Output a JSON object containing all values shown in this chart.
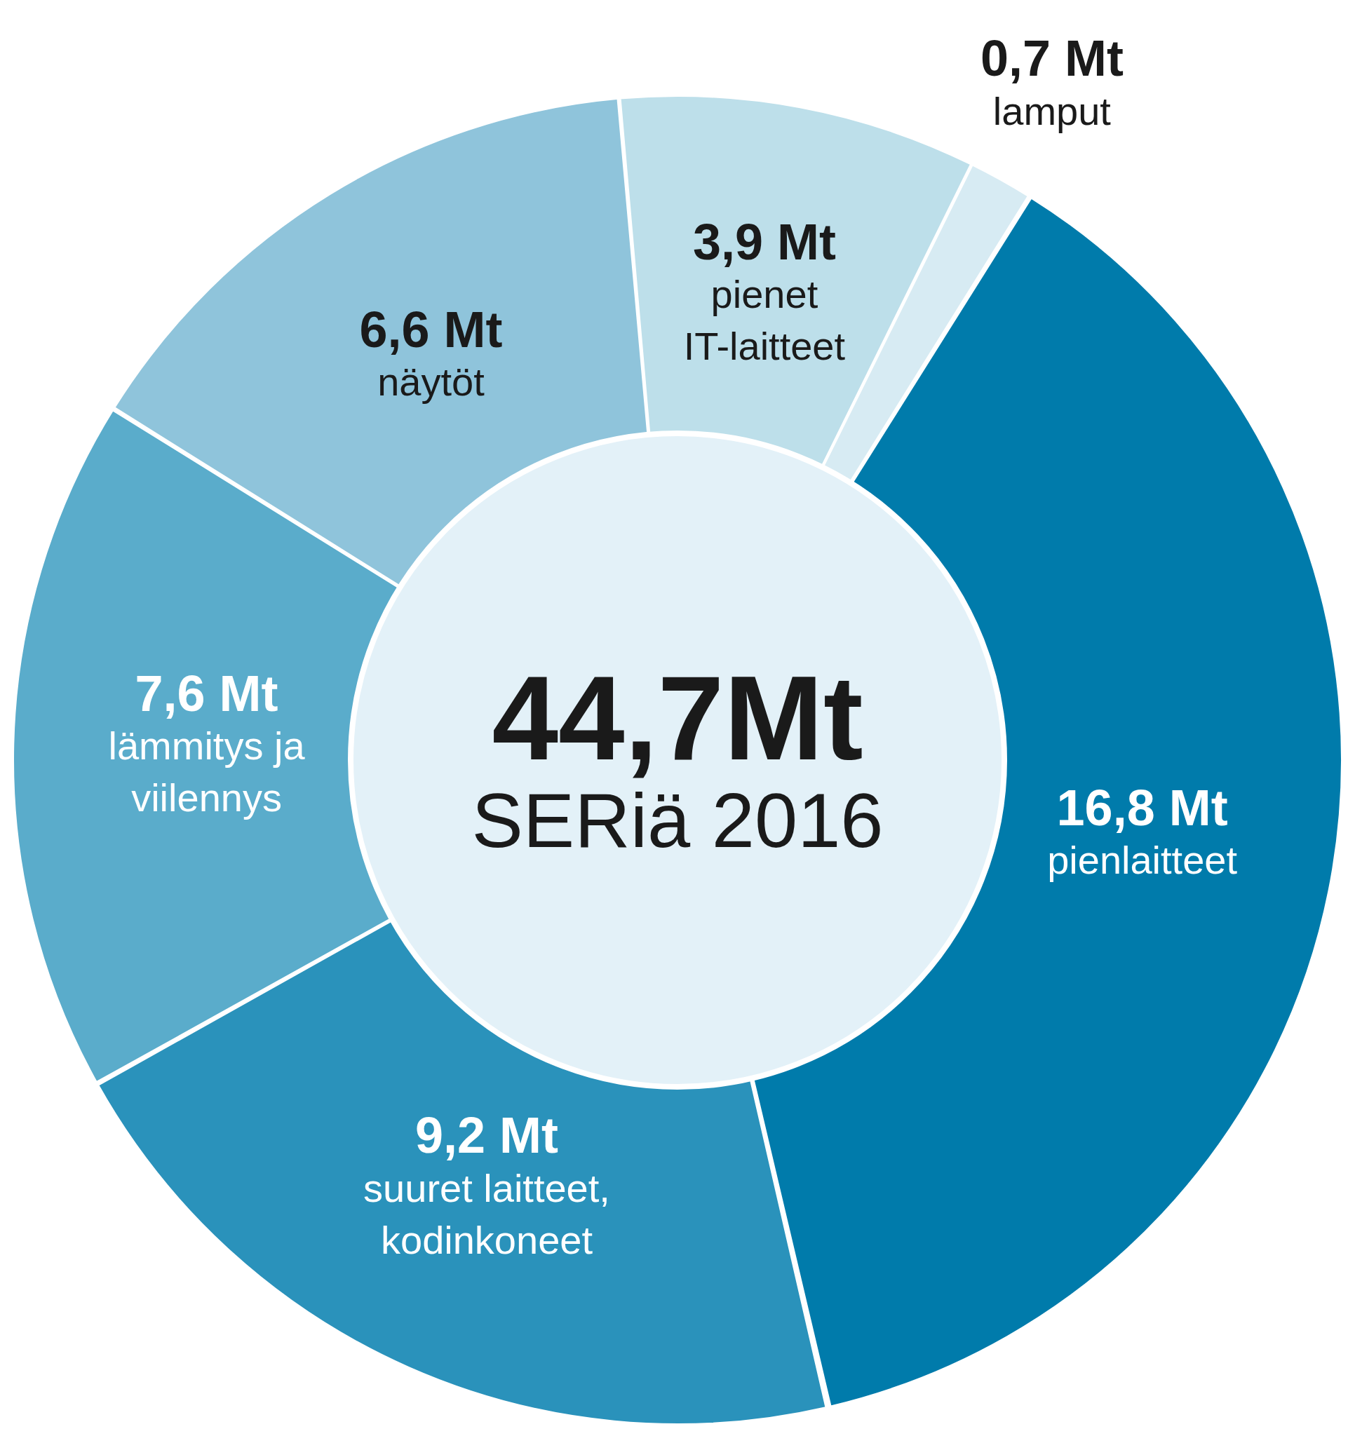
{
  "chart_data": {
    "type": "donut",
    "title": "44,7Mt",
    "subtitle": "SERiä 2016",
    "categories": [
      "pienlaitteet",
      "suuret laitteet, kodinkoneet",
      "lämmitys ja viilennys",
      "näytöt",
      "pienet IT-laitteet",
      "lamput"
    ],
    "values": [
      16.8,
      9.2,
      7.6,
      6.6,
      3.9,
      0.7
    ],
    "value_labels": [
      "16,8 Mt",
      "9,2 Mt",
      "7,6 Mt",
      "6,6 Mt",
      "3,9 Mt",
      "0,7 Mt"
    ],
    "colors": [
      "#007bab",
      "#2a92bb",
      "#5aaccb",
      "#8fc4db",
      "#bddfea",
      "#d7ebf3"
    ],
    "legend": false
  }
}
